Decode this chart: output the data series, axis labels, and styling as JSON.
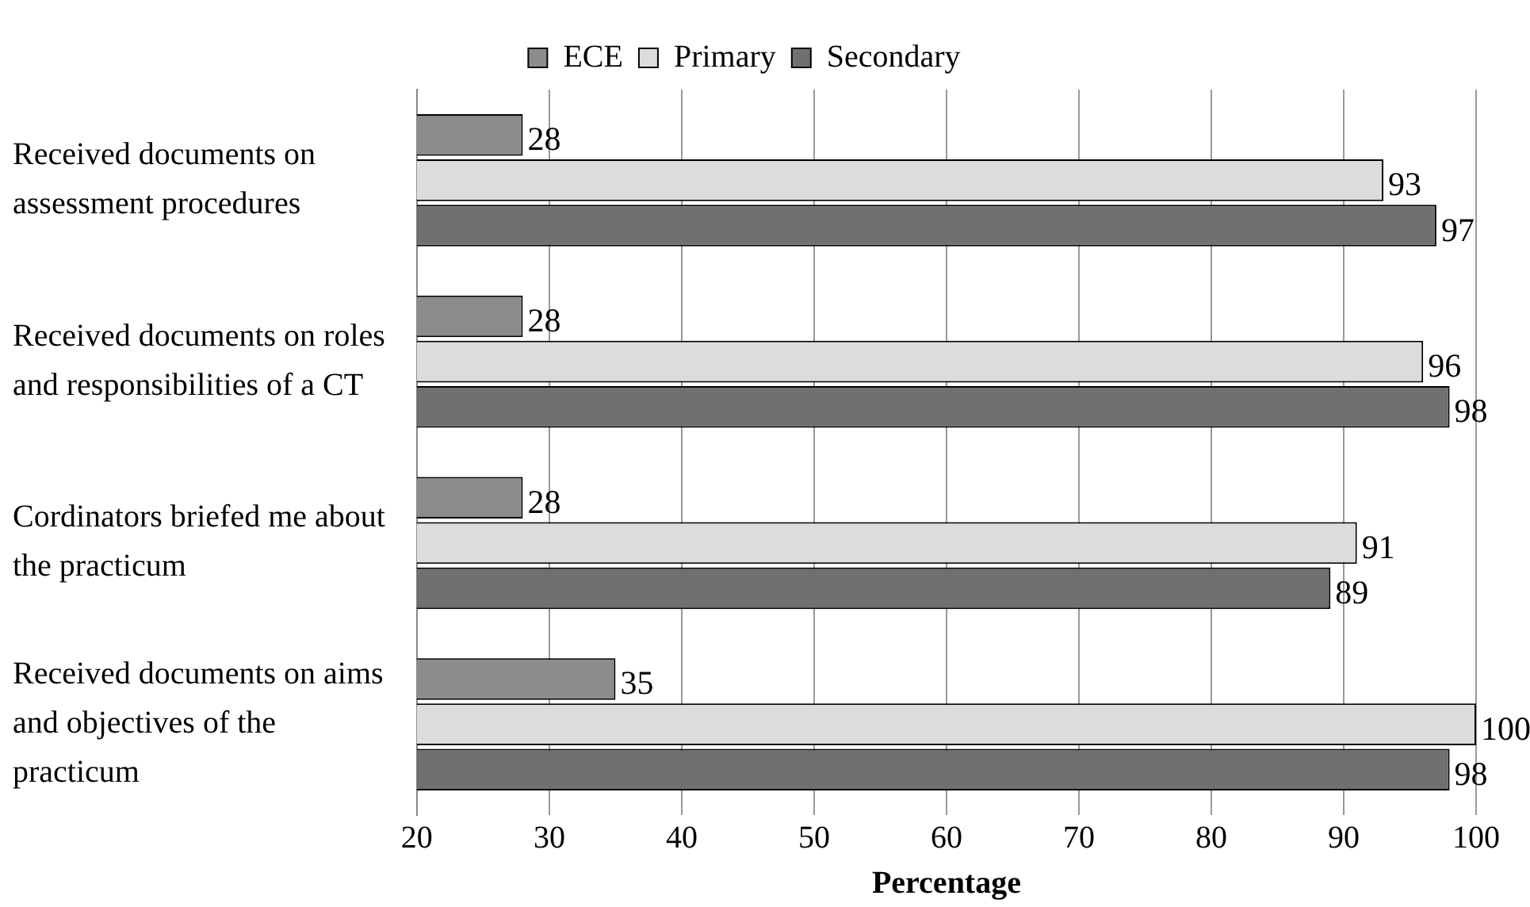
{
  "chart_data": {
    "type": "bar",
    "orientation": "horizontal",
    "xlabel": "Percentage",
    "categories": [
      "Received documents on assessment procedures",
      "Received documents on roles and responsibilities of a CT",
      "Cordinators briefed me about the practicum",
      "Received documents on aims and objectives of the practicum"
    ],
    "series": [
      {
        "name": "ECE",
        "color": "#8c8c8c",
        "values": [
          28,
          28,
          28,
          35
        ]
      },
      {
        "name": "Primary",
        "color": "#dcdcdc",
        "values": [
          93,
          96,
          91,
          100
        ]
      },
      {
        "name": "Secondary",
        "color": "#707070",
        "values": [
          97,
          98,
          89,
          98
        ]
      }
    ],
    "xlim": [
      20,
      100
    ],
    "xticks": [
      20,
      30,
      40,
      50,
      60,
      70,
      80,
      90,
      100
    ],
    "grid": "x",
    "legend": "top",
    "data_labels": true
  }
}
